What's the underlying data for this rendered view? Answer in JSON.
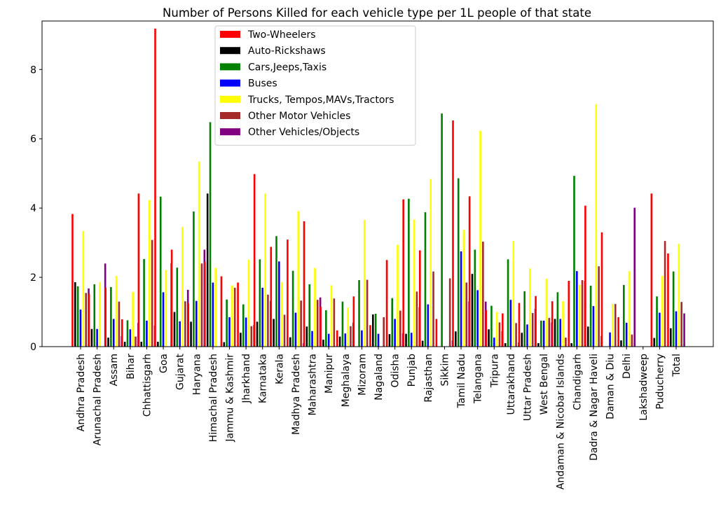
{
  "chart_data": {
    "type": "bar",
    "title": "Number of Persons Killed for each vehicle type per 1L people of that state",
    "xlabel": "",
    "ylabel": "",
    "ylim": [
      0,
      9.4
    ],
    "yticks": [
      0,
      2,
      4,
      6,
      8
    ],
    "grid": false,
    "legend_position": "top-center",
    "categories": [
      "Andhra Pradesh",
      "Arunachal Pradesh",
      "Assam",
      "Bihar",
      "Chhattisgarh",
      "Goa",
      "Gujarat",
      "Haryana",
      "Himachal Pradesh",
      "Jammu & Kashmir",
      "Jharkhand",
      "Karnataka",
      "Kerala",
      "Madhya Pradesh",
      "Maharashtra",
      "Manipur",
      "Meghalaya",
      "Mizoram",
      "Nagaland",
      "Odisha",
      "Punjab",
      "Rajasthan",
      "Sikkim",
      "Tamil Nadu",
      "Telangana",
      "Tripura",
      "Uttarakhand",
      "Uttar Pradesh",
      "West Bengal",
      "Andaman & Nicobar Islands",
      "Chandigarh",
      "Dadra & Nagar Haveli",
      "Daman & Diu",
      "Delhi",
      "Lakshadweep",
      "Puducherry",
      "Total"
    ],
    "series": [
      {
        "name": "Two-Wheelers",
        "color": "#ff0000",
        "values": [
          3.83,
          1.52,
          1.7,
          0.79,
          4.42,
          9.18,
          2.8,
          1.25,
          2.45,
          2.03,
          1.85,
          4.98,
          2.88,
          3.09,
          3.62,
          1.15,
          0.47,
          1.45,
          0.62,
          2.5,
          4.25,
          2.78,
          0.8,
          6.53,
          4.34,
          1.05,
          0.96,
          1.26,
          1.46,
          1.31,
          1.9,
          4.07,
          3.3,
          0.85,
          0,
          4.42,
          2.69
        ]
      },
      {
        "name": "Auto-Rickshaws",
        "color": "#000000",
        "values": [
          1.86,
          0.51,
          0.26,
          0.14,
          0.14,
          0.14,
          1.0,
          0.72,
          4.42,
          0.13,
          0.4,
          0.72,
          0.8,
          0.27,
          0.58,
          0.2,
          0.29,
          0.0,
          0.93,
          0.36,
          0.37,
          0.17,
          0.0,
          0.44,
          2.1,
          0.5,
          0.1,
          0.4,
          0.1,
          0.8,
          0.1,
          0.58,
          0.0,
          0.18,
          0,
          0.25,
          0.53
        ]
      },
      {
        "name": "Cars,Jeeps,Taxis",
        "color": "#008000",
        "values": [
          1.74,
          1.8,
          1.72,
          0.76,
          2.53,
          4.33,
          2.28,
          3.9,
          6.48,
          1.36,
          1.22,
          2.52,
          3.19,
          2.19,
          1.8,
          1.05,
          1.3,
          1.92,
          0.95,
          1.4,
          4.27,
          3.88,
          6.73,
          4.86,
          2.8,
          1.18,
          2.52,
          1.6,
          0.75,
          1.57,
          4.93,
          1.76,
          0.0,
          1.78,
          0,
          1.45,
          2.17
        ]
      },
      {
        "name": "Buses",
        "color": "#0000ff",
        "values": [
          1.07,
          0.51,
          0.8,
          0.5,
          0.75,
          1.57,
          0.73,
          1.32,
          1.85,
          0.85,
          0.84,
          1.7,
          2.46,
          0.98,
          0.45,
          0.37,
          0.38,
          0.47,
          0.37,
          0.8,
          0.4,
          1.22,
          0.0,
          2.75,
          1.63,
          0.26,
          1.35,
          0.64,
          0.75,
          0.8,
          2.18,
          1.17,
          0.41,
          0.69,
          0,
          0.98,
          1.02
        ]
      },
      {
        "name": "Trucks, Tempos,MAVs,Tractors",
        "color": "#ffff00",
        "values": [
          3.34,
          1.86,
          2.04,
          1.58,
          4.23,
          2.21,
          3.46,
          5.34,
          2.27,
          1.77,
          2.51,
          4.42,
          1.86,
          3.91,
          2.27,
          1.77,
          1.13,
          3.66,
          0.0,
          2.94,
          3.67,
          4.84,
          0.0,
          3.37,
          6.23,
          1.0,
          3.05,
          2.26,
          1.96,
          1.31,
          1.78,
          7.0,
          1.23,
          2.18,
          0,
          2.04,
          2.97
        ]
      },
      {
        "name": "Other Motor Vehicles",
        "color": "#a52a2a",
        "values": [
          1.55,
          0.0,
          1.3,
          0.29,
          3.08,
          0.0,
          1.31,
          2.4,
          0.0,
          1.7,
          0.59,
          1.5,
          0.92,
          1.33,
          1.35,
          1.39,
          0.59,
          1.93,
          0.85,
          1.04,
          1.59,
          2.17,
          1.97,
          1.85,
          3.03,
          0.7,
          0.68,
          0.97,
          0.83,
          0.26,
          1.92,
          2.32,
          1.23,
          0.35,
          0,
          3.05,
          1.29
        ]
      },
      {
        "name": "Other Vehicles/Objects",
        "color": "#800080",
        "values": [
          1.68,
          2.4,
          0.3,
          0.69,
          0.61,
          2.41,
          1.64,
          2.8,
          0.0,
          0.0,
          0.63,
          1.32,
          0.0,
          0.1,
          1.42,
          0.0,
          0.69,
          0.0,
          0.0,
          0.38,
          1.14,
          0.0,
          0.18,
          1.3,
          1.3,
          0.45,
          0.12,
          1.09,
          0.7,
          0.0,
          1.9,
          0.31,
          0.0,
          4.01,
          0,
          0.0,
          0.96
        ]
      }
    ]
  }
}
